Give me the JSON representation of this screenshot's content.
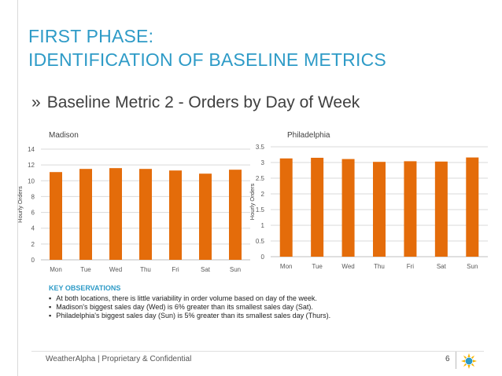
{
  "slide": {
    "title_line1": "FIRST PHASE:",
    "title_line2": "IDENTIFICATION OF BASELINE METRICS",
    "subtitle_marker": "»",
    "subtitle": "Baseline Metric 2 - Orders by Day of Week",
    "footer": "WeatherAlpha | Proprietary & Confidential",
    "page_number": "6",
    "logo_icon": "sun-logo-icon"
  },
  "observations": {
    "heading": "KEY OBSERVATIONS",
    "items": [
      "At both locations, there is little variability in order volume based on day of the week.",
      "Madison's biggest sales day (Wed) is 6% greater than its smallest sales day (Sat).",
      "Philadelphia's biggest sales day (Sun) is 5% greater than its smallest sales day (Thurs)."
    ]
  },
  "chart_data": [
    {
      "type": "bar",
      "title": "Madison",
      "ylabel": "Hourly Orders",
      "xlabel": "",
      "categories": [
        "Mon",
        "Tue",
        "Wed",
        "Thu",
        "Fri",
        "Sat",
        "Sun"
      ],
      "values": [
        11.1,
        11.5,
        11.6,
        11.5,
        11.3,
        10.9,
        11.4
      ],
      "ylim": [
        0,
        14
      ],
      "yticks": [
        0,
        2,
        4,
        6,
        8,
        10,
        12,
        14
      ],
      "ytick_labels": [
        "0",
        "2",
        "4",
        "6",
        "8",
        "10",
        "12",
        "14"
      ],
      "grid": true,
      "color": "#e46c0a"
    },
    {
      "type": "bar",
      "title": "Philadelphia",
      "ylabel": "Hourly Orders",
      "xlabel": "",
      "categories": [
        "Mon",
        "Tue",
        "Wed",
        "Thu",
        "Fri",
        "Sat",
        "Sun"
      ],
      "values": [
        3.13,
        3.15,
        3.11,
        3.02,
        3.04,
        3.03,
        3.16
      ],
      "ylim": [
        0,
        3.5
      ],
      "yticks": [
        0,
        0.5,
        1,
        1.5,
        2,
        2.5,
        3,
        3.5
      ],
      "ytick_labels": [
        "0",
        "0.5",
        "1",
        "1.5",
        "2",
        "2.5",
        "3",
        "3.5"
      ],
      "grid": true,
      "color": "#e46c0a"
    }
  ]
}
